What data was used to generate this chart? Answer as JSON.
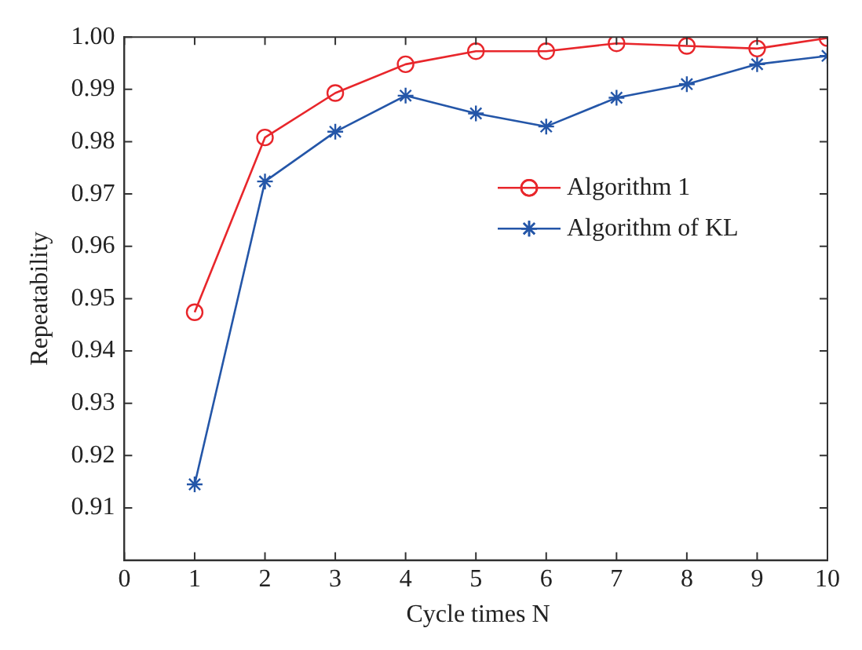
{
  "chart_data": {
    "type": "line",
    "xlabel": "Cycle times N",
    "ylabel": "Repeatability",
    "x": [
      1,
      2,
      3,
      4,
      5,
      6,
      7,
      8,
      9,
      10
    ],
    "series": [
      {
        "name": "Algorithm 1",
        "color": "#e8262b",
        "marker": "circle",
        "values": [
          0.9474,
          0.9808,
          0.9893,
          0.9948,
          0.9973,
          0.9973,
          0.9988,
          0.9983,
          0.9978,
          0.9998
        ]
      },
      {
        "name": "Algorithm of KL",
        "color": "#2456a8",
        "marker": "cross",
        "values": [
          0.9145,
          0.9724,
          0.9819,
          0.9888,
          0.9854,
          0.9829,
          0.9884,
          0.991,
          0.9948,
          0.9964
        ]
      }
    ],
    "xlim": [
      0,
      10
    ],
    "xticks": [
      0,
      1,
      2,
      3,
      4,
      5,
      6,
      7,
      8,
      9,
      10
    ],
    "ylim": [
      0.9,
      1.0
    ],
    "yticks": [
      0.91,
      0.92,
      0.93,
      0.94,
      0.95,
      0.96,
      0.97,
      0.98,
      0.99,
      {
        "value": 1.0,
        "label": "1.00"
      }
    ],
    "grid": false,
    "legend": "right",
    "line_style": "solid"
  }
}
